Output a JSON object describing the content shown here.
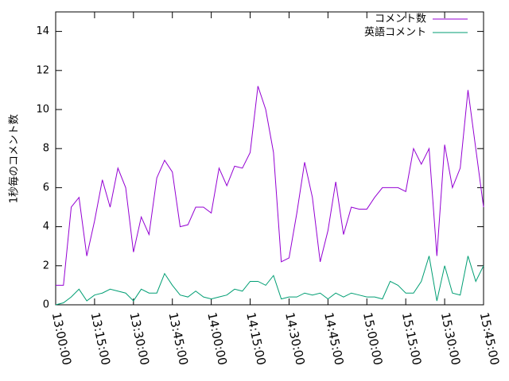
{
  "chart_data": {
    "type": "line",
    "ylabel": "1秒毎のコメント数",
    "x": [
      "13:00:00",
      "13:03:00",
      "13:06:00",
      "13:09:00",
      "13:12:00",
      "13:15:00",
      "13:18:00",
      "13:21:00",
      "13:24:00",
      "13:27:00",
      "13:30:00",
      "13:33:00",
      "13:36:00",
      "13:39:00",
      "13:42:00",
      "13:45:00",
      "13:48:00",
      "13:51:00",
      "13:54:00",
      "13:57:00",
      "14:00:00",
      "14:03:00",
      "14:06:00",
      "14:09:00",
      "14:12:00",
      "14:15:00",
      "14:18:00",
      "14:21:00",
      "14:24:00",
      "14:27:00",
      "14:30:00",
      "14:33:00",
      "14:36:00",
      "14:39:00",
      "14:42:00",
      "14:45:00",
      "14:48:00",
      "14:51:00",
      "14:54:00",
      "14:57:00",
      "15:00:00",
      "15:03:00",
      "15:06:00",
      "15:09:00",
      "15:12:00",
      "15:15:00",
      "15:18:00",
      "15:21:00",
      "15:24:00",
      "15:27:00",
      "15:30:00",
      "15:33:00",
      "15:36:00",
      "15:39:00",
      "15:42:00",
      "15:45:00"
    ],
    "series": [
      {
        "name": "コメント数",
        "color": "#9400d3",
        "values": [
          1.0,
          1.0,
          5.0,
          5.5,
          2.5,
          4.3,
          6.4,
          5.0,
          7.0,
          6.0,
          2.7,
          4.5,
          3.6,
          6.5,
          7.4,
          6.8,
          4.0,
          4.1,
          5.0,
          5.0,
          4.7,
          7.0,
          6.1,
          7.1,
          7.0,
          7.8,
          11.2,
          10.0,
          7.8,
          2.2,
          2.4,
          4.7,
          7.3,
          5.5,
          2.2,
          3.8,
          6.3,
          3.6,
          5.0,
          4.9,
          4.9,
          5.5,
          6.0,
          6.0,
          6.0,
          5.8,
          8.0,
          7.2,
          8.0,
          2.5,
          8.2,
          6.0,
          7.0,
          11.0,
          8.0,
          5.0
        ]
      },
      {
        "name": "英語コメント",
        "color": "#009e73",
        "values": [
          0.0,
          0.1,
          0.4,
          0.8,
          0.2,
          0.5,
          0.6,
          0.8,
          0.7,
          0.6,
          0.2,
          0.8,
          0.6,
          0.6,
          1.6,
          1.0,
          0.5,
          0.4,
          0.7,
          0.4,
          0.3,
          0.4,
          0.5,
          0.8,
          0.7,
          1.2,
          1.2,
          1.0,
          1.5,
          0.3,
          0.4,
          0.4,
          0.6,
          0.5,
          0.6,
          0.3,
          0.6,
          0.4,
          0.6,
          0.5,
          0.4,
          0.4,
          0.3,
          1.2,
          1.0,
          0.6,
          0.6,
          1.2,
          2.5,
          0.2,
          2.0,
          0.6,
          0.5,
          2.5,
          1.2,
          2.0
        ]
      }
    ],
    "xlim": [
      "13:00:00",
      "15:45:00"
    ],
    "xticks": [
      "13:00:00",
      "13:15:00",
      "13:30:00",
      "13:45:00",
      "14:00:00",
      "14:15:00",
      "14:30:00",
      "14:45:00",
      "15:00:00",
      "15:15:00",
      "15:30:00",
      "15:45:00"
    ],
    "ylim": [
      0,
      15
    ],
    "yticks": [
      0,
      2,
      4,
      6,
      8,
      10,
      12,
      14
    ],
    "legend": "top-right"
  }
}
